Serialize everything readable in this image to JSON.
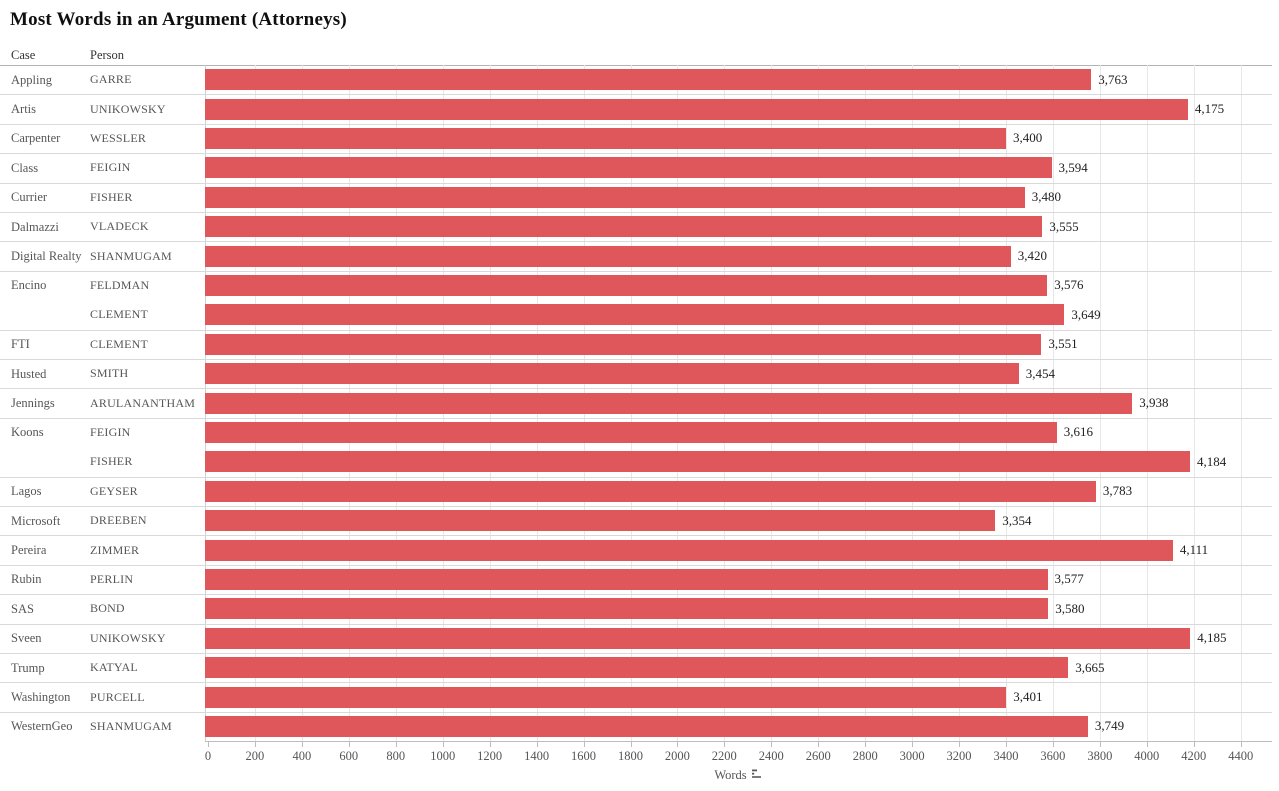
{
  "title": "Most Words in an Argument (Attorneys)",
  "columns": {
    "case": "Case",
    "person": "Person"
  },
  "axis": {
    "label": "Words",
    "min": 0,
    "max": 4400,
    "step": 200,
    "tick_labels": [
      "0",
      "200",
      "400",
      "600",
      "800",
      "1000",
      "1200",
      "1400",
      "1600",
      "1800",
      "2000",
      "2200",
      "2400",
      "2600",
      "2800",
      "3000",
      "3200",
      "3400",
      "3600",
      "3800",
      "4000",
      "4200",
      "4400"
    ],
    "sort_icon": "sort-descending-icon"
  },
  "colors": {
    "bar": "#e0575b",
    "gridline": "#e7e7e7",
    "row_divider": "#d9d9d9",
    "label_text": "#565656",
    "value_text": "#1f1f1f"
  },
  "chart_data": {
    "type": "bar",
    "orientation": "horizontal",
    "title": "Most Words in an Argument (Attorneys)",
    "xlabel": "Words",
    "ylabel": "",
    "xlim": [
      0,
      4400
    ],
    "grid": true,
    "bar_color": "#e0575b",
    "rows": [
      {
        "case": "Appling",
        "person": "GARRE",
        "words": 3763,
        "label": "3,763"
      },
      {
        "case": "Artis",
        "person": "UNIKOWSKY",
        "words": 4175,
        "label": "4,175"
      },
      {
        "case": "Carpenter",
        "person": "WESSLER",
        "words": 3400,
        "label": "3,400"
      },
      {
        "case": "Class",
        "person": "FEIGIN",
        "words": 3594,
        "label": "3,594"
      },
      {
        "case": "Currier",
        "person": "FISHER",
        "words": 3480,
        "label": "3,480"
      },
      {
        "case": "Dalmazzi",
        "person": "VLADECK",
        "words": 3555,
        "label": "3,555"
      },
      {
        "case": "Digital Realty",
        "person": "SHANMUGAM",
        "words": 3420,
        "label": "3,420"
      },
      {
        "case": "Encino",
        "person": "FELDMAN",
        "words": 3576,
        "label": "3,576"
      },
      {
        "case": "",
        "person": "CLEMENT",
        "words": 3649,
        "label": "3,649"
      },
      {
        "case": "FTI",
        "person": "CLEMENT",
        "words": 3551,
        "label": "3,551"
      },
      {
        "case": "Husted",
        "person": "SMITH",
        "words": 3454,
        "label": "3,454"
      },
      {
        "case": "Jennings",
        "person": "ARULANANTHAM",
        "words": 3938,
        "label": "3,938"
      },
      {
        "case": "Koons",
        "person": "FEIGIN",
        "words": 3616,
        "label": "3,616"
      },
      {
        "case": "",
        "person": "FISHER",
        "words": 4184,
        "label": "4,184"
      },
      {
        "case": "Lagos",
        "person": "GEYSER",
        "words": 3783,
        "label": "3,783"
      },
      {
        "case": "Microsoft",
        "person": "DREEBEN",
        "words": 3354,
        "label": "3,354"
      },
      {
        "case": "Pereira",
        "person": "ZIMMER",
        "words": 4111,
        "label": "4,111"
      },
      {
        "case": "Rubin",
        "person": "PERLIN",
        "words": 3577,
        "label": "3,577"
      },
      {
        "case": "SAS",
        "person": "BOND",
        "words": 3580,
        "label": "3,580"
      },
      {
        "case": "Sveen",
        "person": "UNIKOWSKY",
        "words": 4185,
        "label": "4,185"
      },
      {
        "case": "Trump",
        "person": "KATYAL",
        "words": 3665,
        "label": "3,665"
      },
      {
        "case": "Washington",
        "person": "PURCELL",
        "words": 3401,
        "label": "3,401"
      },
      {
        "case": "WesternGeo",
        "person": "SHANMUGAM",
        "words": 3749,
        "label": "3,749"
      }
    ]
  }
}
